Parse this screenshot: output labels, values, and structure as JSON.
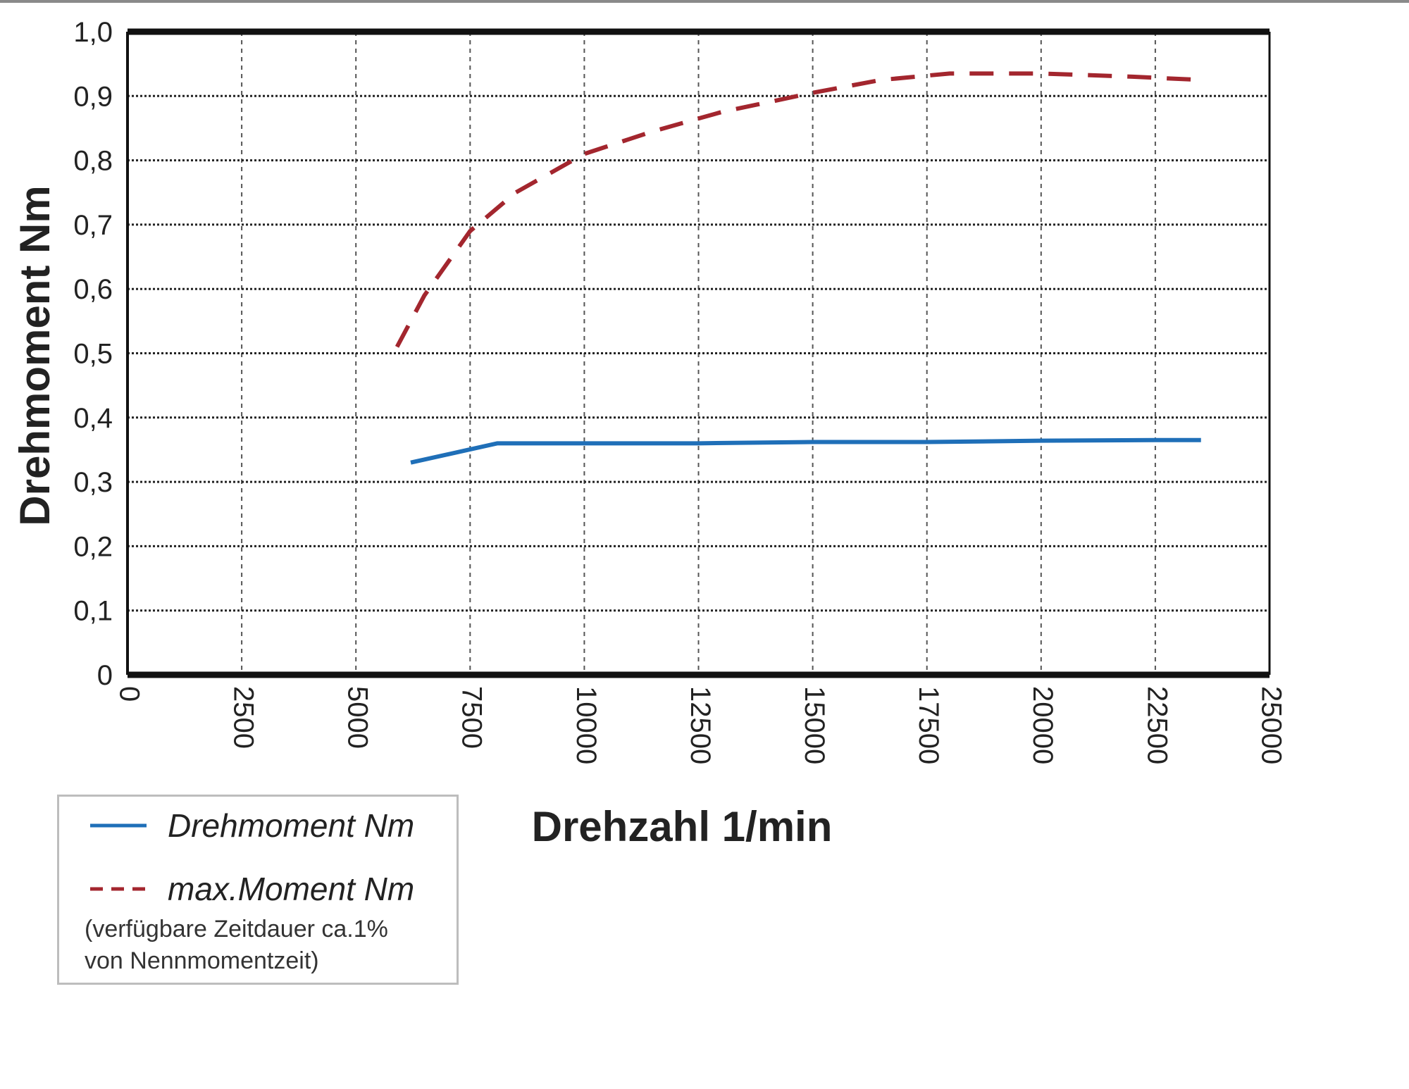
{
  "chart_data": {
    "type": "line",
    "xlabel": "Drehzahl 1/min",
    "ylabel": "Drehmoment Nm",
    "xlim": [
      0,
      25000
    ],
    "ylim": [
      0,
      1.0
    ],
    "x_ticks": [
      "0",
      "2500",
      "5000",
      "7500",
      "10000",
      "12500",
      "15000",
      "17500",
      "20000",
      "22500",
      "25000"
    ],
    "y_ticks": [
      "0",
      "0,1",
      "0,2",
      "0,3",
      "0,4",
      "0,5",
      "0,6",
      "0,7",
      "0,8",
      "0,9",
      "1,0"
    ],
    "grid": true,
    "legend_position": "bottom-left",
    "series": [
      {
        "name": "Drehmoment Nm",
        "color": "#1f6fb8",
        "style": "solid",
        "x": [
          6200,
          8100,
          10000,
          12500,
          15000,
          17500,
          20000,
          22500,
          23500
        ],
        "y": [
          0.33,
          0.36,
          0.36,
          0.36,
          0.362,
          0.362,
          0.364,
          0.365,
          0.365
        ]
      },
      {
        "name": "max.Moment Nm",
        "color": "#a3262e",
        "style": "dashed",
        "x": [
          5900,
          6500,
          7500,
          8500,
          10000,
          11500,
          13000,
          15000,
          16500,
          18000,
          20000,
          22000,
          23500
        ],
        "y": [
          0.51,
          0.59,
          0.69,
          0.75,
          0.81,
          0.845,
          0.875,
          0.905,
          0.925,
          0.935,
          0.935,
          0.93,
          0.925
        ]
      }
    ]
  },
  "legend": {
    "items": [
      {
        "label": "Drehmoment Nm",
        "color": "#1f6fb8",
        "style": "solid"
      },
      {
        "label": "max.Moment Nm",
        "color": "#a3262e",
        "style": "dashed"
      }
    ],
    "note_line1": "(verfügbare Zeitdauer ca.1%",
    "note_line2": "von Nennmomentzeit)"
  }
}
